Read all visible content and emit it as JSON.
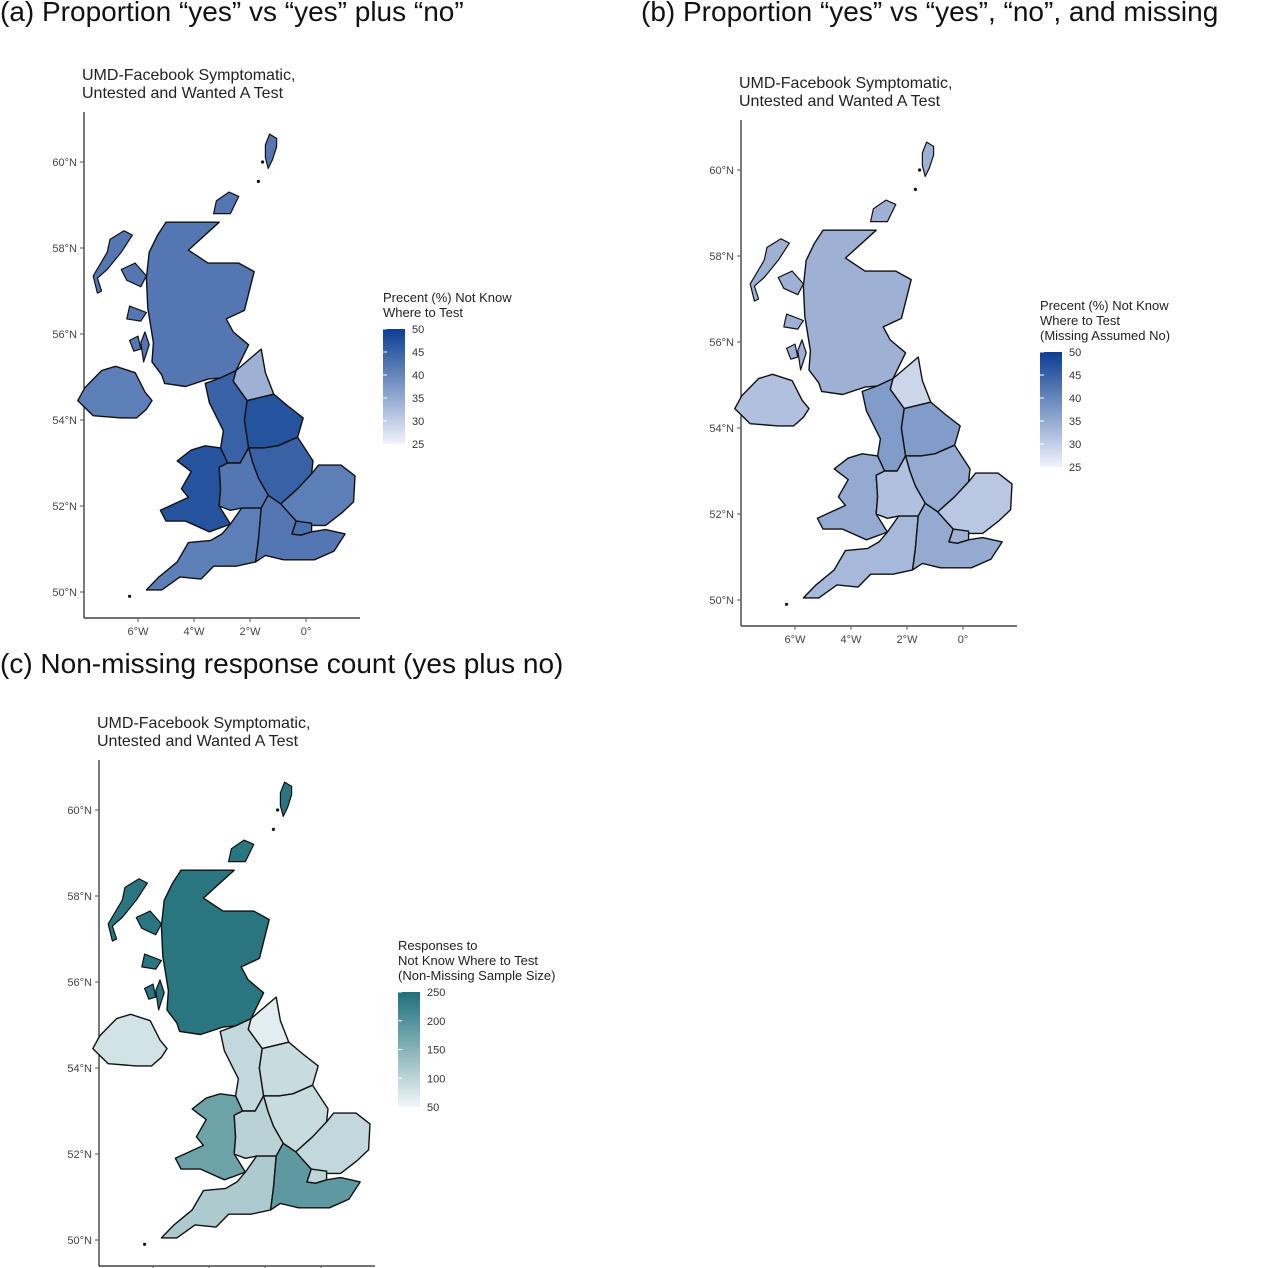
{
  "headings": {
    "a": "(a)   Proportion “yes” vs “yes” plus “no”",
    "b": "(b) Proportion “yes” vs “yes”, “no”, and missing",
    "c": "(c) Non-missing response count (yes plus no)"
  },
  "chart_data": [
    {
      "type": "choropleth",
      "panel": "a",
      "title_lines": [
        "UMD-Facebook Symptomatic,",
        "Untested and Wanted A Test"
      ],
      "x_ticks": [
        "6°W",
        "4°W",
        "2°W",
        "0°"
      ],
      "y_ticks": [
        "50°N",
        "52°N",
        "54°N",
        "56°N",
        "58°N",
        "60°N"
      ],
      "legend": {
        "title_lines": [
          "Precent (%) Not Know",
          "Where to Test"
        ],
        "ticks": [
          50,
          45,
          40,
          35,
          30,
          25
        ],
        "range": [
          25,
          50
        ],
        "color_low": "#f0f3fc",
        "color_high": "#0b3d91"
      },
      "regions": {
        "scotland": 42,
        "north_east": 34,
        "north_west": 45,
        "yorkshire": 47,
        "wales": 47,
        "east_midlands": 45,
        "west_midlands": 42,
        "east_of_england": 41,
        "london": 43,
        "south_east": 42,
        "south_west": 41,
        "northern_ireland": 41
      },
      "grid": false
    },
    {
      "type": "choropleth",
      "panel": "b",
      "title_lines": [
        "UMD-Facebook Symptomatic,",
        "Untested and Wanted A Test"
      ],
      "x_ticks": [
        "6°W",
        "4°W",
        "2°W",
        "0°"
      ],
      "y_ticks": [
        "50°N",
        "52°N",
        "54°N",
        "56°N",
        "58°N",
        "60°N"
      ],
      "legend": {
        "title_lines": [
          "Precent (%) Not Know",
          "Where to Test",
          "(Missing Assumed No)"
        ],
        "ticks": [
          50,
          45,
          40,
          35,
          30,
          25
        ],
        "range": [
          25,
          50
        ],
        "color_low": "#f0f3fc",
        "color_high": "#0b3d91"
      },
      "regions": {
        "scotland": 34,
        "north_east": 29,
        "north_west": 37,
        "yorkshire": 37,
        "wales": 35,
        "east_midlands": 35,
        "west_midlands": 32,
        "east_of_england": 31,
        "london": 34,
        "south_east": 35,
        "south_west": 33,
        "northern_ireland": 32
      },
      "grid": false
    },
    {
      "type": "choropleth",
      "panel": "c",
      "title_lines": [
        "UMD-Facebook Symptomatic,",
        "Untested and Wanted A Test"
      ],
      "x_ticks": [
        "6°W",
        "4°W",
        "2°W",
        "0°"
      ],
      "y_ticks": [
        "50°N",
        "52°N",
        "54°N",
        "56°N",
        "58°N",
        "60°N"
      ],
      "legend": {
        "title_lines": [
          "Responses to",
          "Not Know Where to Test",
          "(Non-Missing Sample Size)"
        ],
        "ticks": [
          250,
          200,
          150,
          100,
          50
        ],
        "range": [
          50,
          250
        ],
        "color_low": "#f2f7f8",
        "color_high": "#1f6f7a"
      },
      "regions": {
        "scotland": 240,
        "north_east": 65,
        "north_west": 95,
        "yorkshire": 90,
        "wales": 175,
        "east_midlands": 90,
        "west_midlands": 105,
        "east_of_england": 95,
        "london": 100,
        "south_east": 190,
        "south_west": 115,
        "northern_ireland": 80
      },
      "grid": false
    }
  ]
}
